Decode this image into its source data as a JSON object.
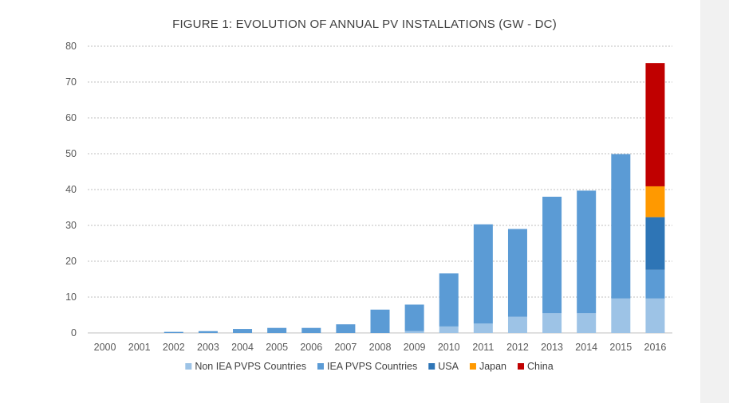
{
  "chart_data": {
    "type": "stacked-bar",
    "title": "FIGURE 1: EVOLUTION OF ANNUAL PV INSTALLATIONS (GW - DC)",
    "xlabel": "",
    "ylabel": "",
    "ylim": [
      0,
      80
    ],
    "yticks": [
      0,
      10,
      20,
      30,
      40,
      50,
      60,
      70,
      80
    ],
    "grid": true,
    "legend_position": "bottom",
    "categories": [
      "2000",
      "2001",
      "2002",
      "2003",
      "2004",
      "2005",
      "2006",
      "2007",
      "2008",
      "2009",
      "2010",
      "2011",
      "2012",
      "2013",
      "2014",
      "2015",
      "2016"
    ],
    "series": [
      {
        "name": "Non IEA PVPS Countries",
        "color": "#9dc3e6",
        "values": [
          0,
          0,
          0,
          0,
          0,
          0,
          0,
          0,
          0,
          0.5,
          1.8,
          2.6,
          4.5,
          5.5,
          5.5,
          9.6,
          9.6
        ]
      },
      {
        "name": "IEA PVPS Countries",
        "color": "#5b9bd5",
        "values": [
          0,
          0,
          0.3,
          0.5,
          1.1,
          1.4,
          1.4,
          2.4,
          6.5,
          7.4,
          14.8,
          27.7,
          24.5,
          32.5,
          34.2,
          40.3,
          8.0
        ]
      },
      {
        "name": "USA",
        "color": "#2e75b6",
        "values": [
          0,
          0,
          0,
          0,
          0,
          0,
          0,
          0,
          0,
          0,
          0,
          0,
          0,
          0,
          0,
          0,
          14.7
        ]
      },
      {
        "name": "Japan",
        "color": "#ff9900",
        "values": [
          0,
          0,
          0,
          0,
          0,
          0,
          0,
          0,
          0,
          0,
          0,
          0,
          0,
          0,
          0,
          0,
          8.6
        ]
      },
      {
        "name": "China",
        "color": "#c00000",
        "values": [
          0,
          0,
          0,
          0,
          0,
          0,
          0,
          0,
          0,
          0,
          0,
          0,
          0,
          0,
          0,
          0,
          34.4
        ]
      }
    ]
  }
}
